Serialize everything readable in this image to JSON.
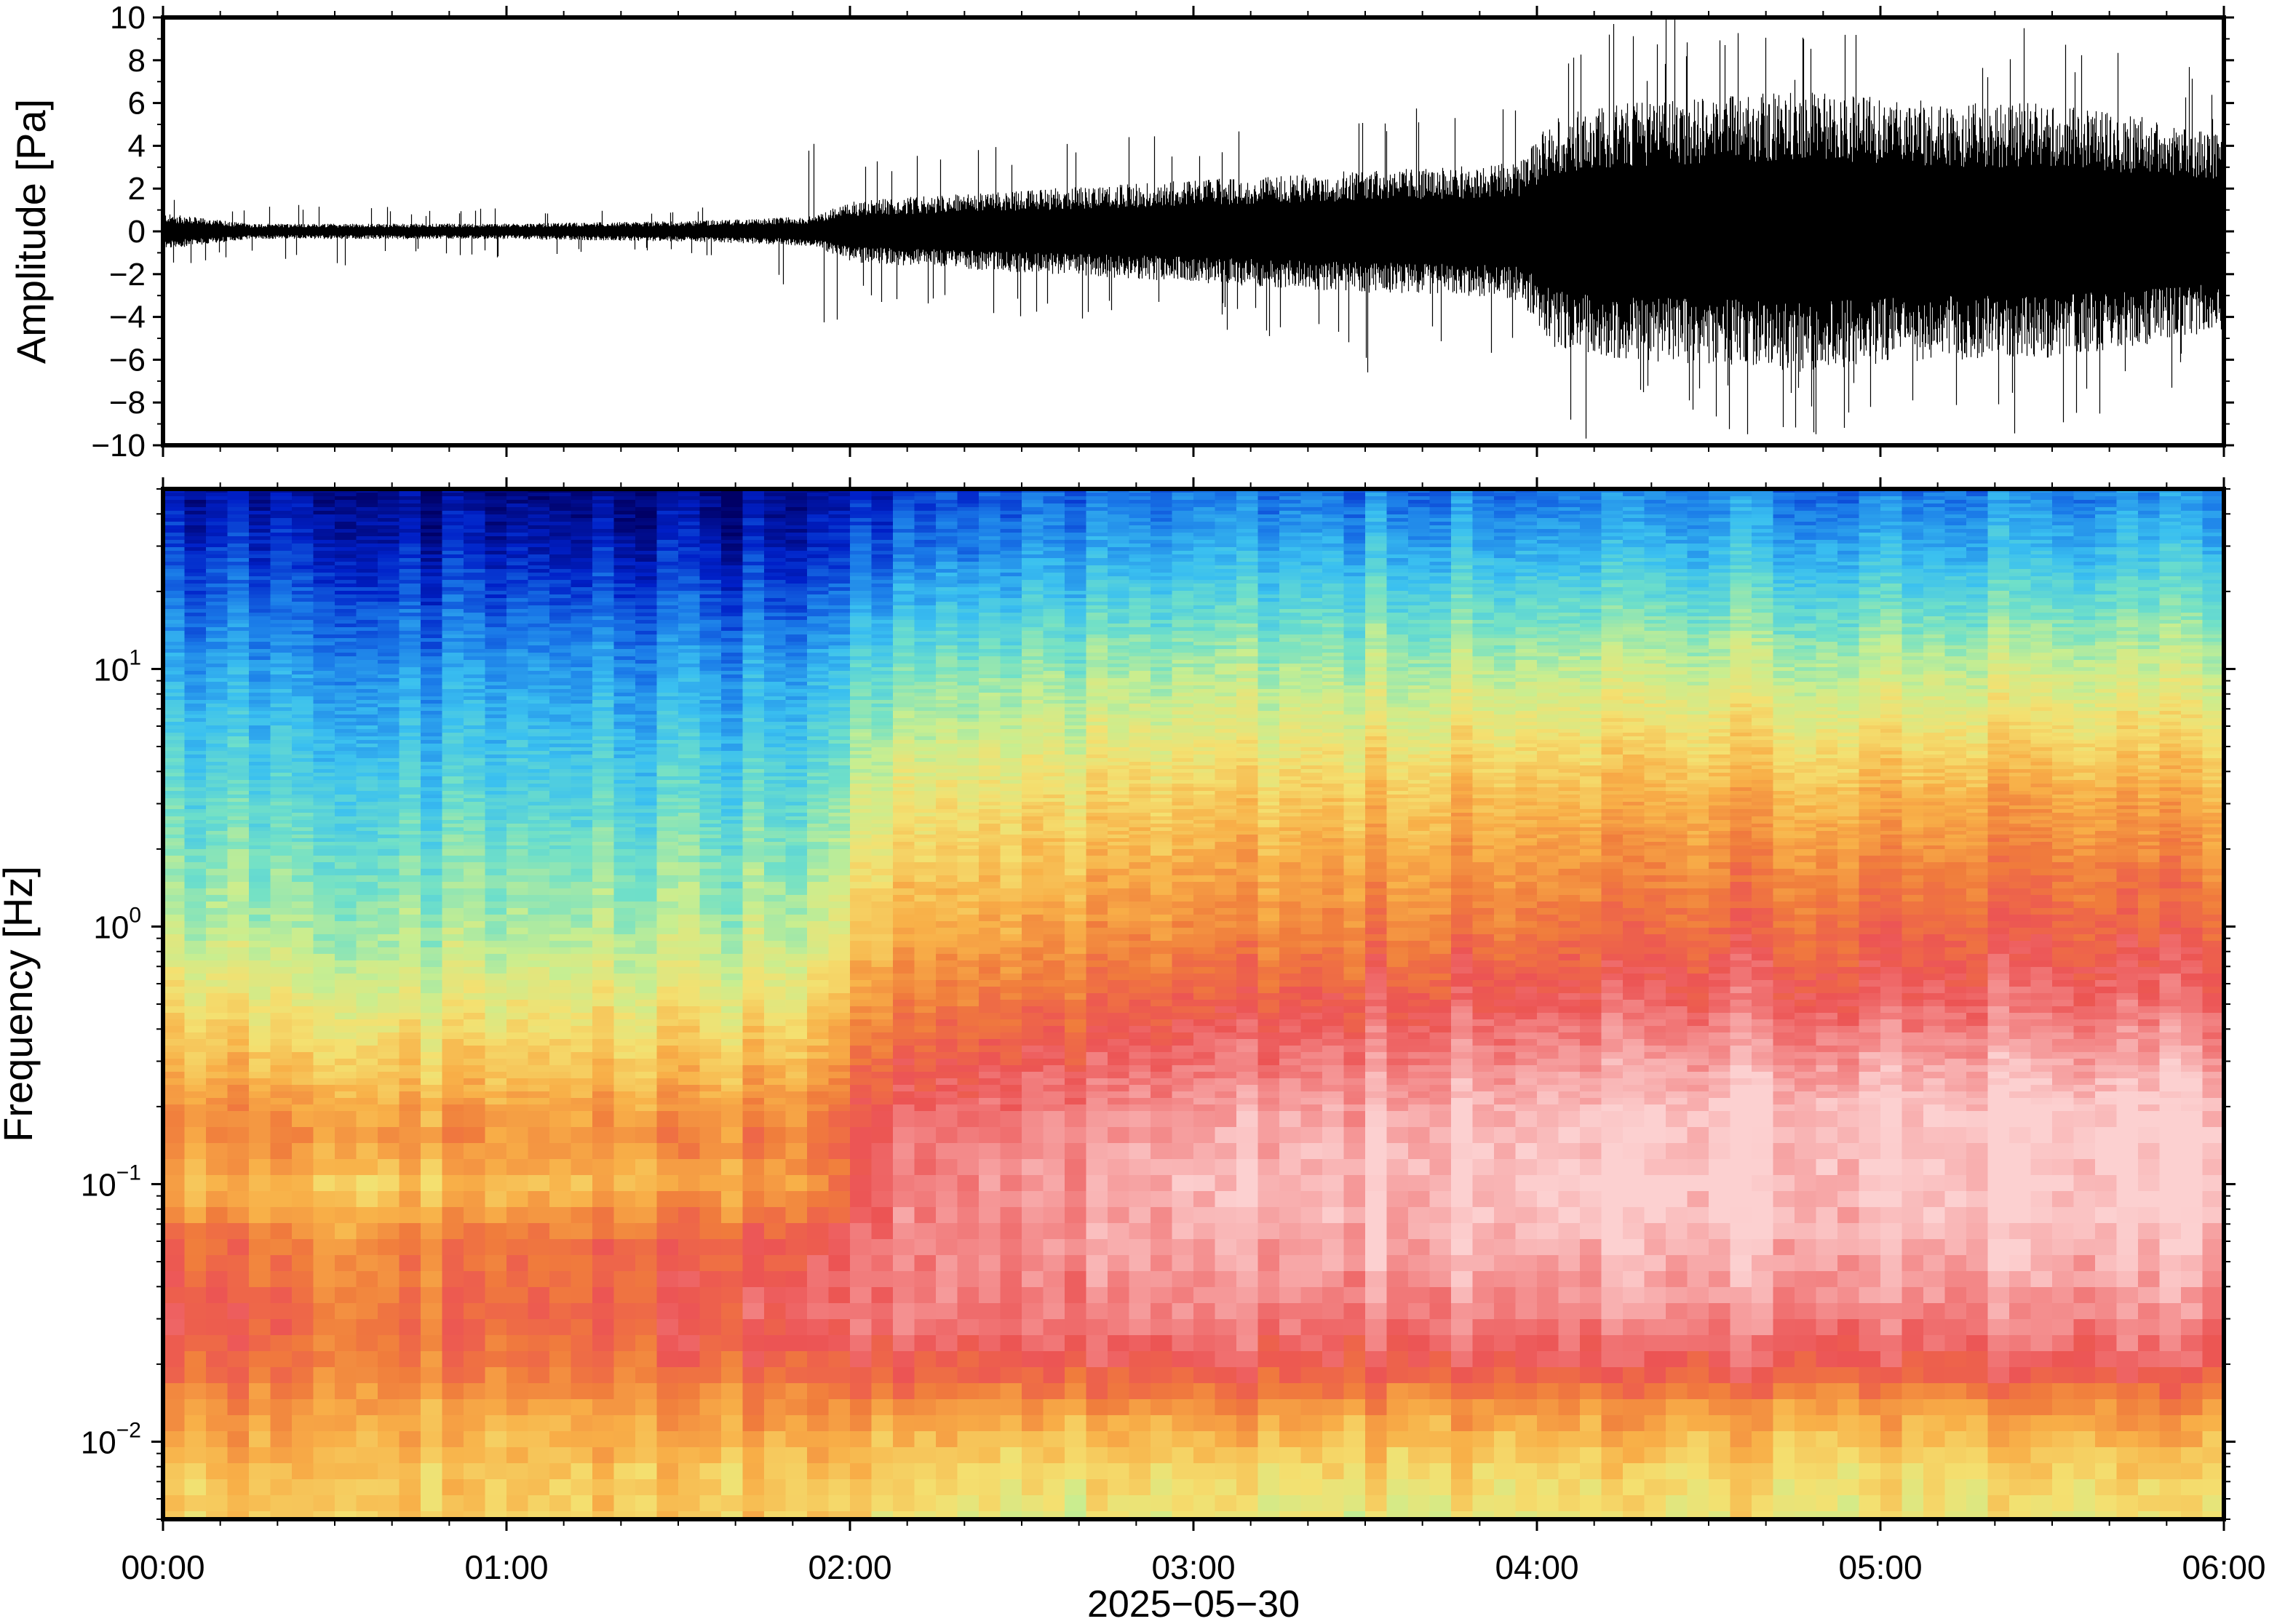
{
  "chart_data": [
    {
      "type": "line",
      "panel": "waveform",
      "ylabel": "Amplitude [Pa]",
      "ylim": [
        -10,
        10
      ],
      "yticks": [
        10,
        8,
        6,
        4,
        2,
        0,
        -2,
        -4,
        -6,
        -8,
        -10
      ],
      "ytick_labels": [
        "10",
        "8",
        "6",
        "4",
        "2",
        "0",
        "−2",
        "−4",
        "−6",
        "−8",
        "−10"
      ],
      "xlim": [
        "00:00",
        "06:00"
      ],
      "grid": false,
      "series": [
        {
          "color": "#000000",
          "x_hours": [
            0.0,
            0.25,
            0.5,
            0.75,
            1.0,
            1.25,
            1.5,
            1.75,
            1.9,
            2.0,
            2.25,
            2.5,
            2.75,
            3.0,
            3.25,
            3.5,
            3.75,
            3.95,
            4.05,
            4.25,
            4.5,
            4.75,
            5.0,
            5.25,
            5.5,
            5.75,
            6.0
          ],
          "envelope_typical": [
            0.7,
            0.3,
            0.3,
            0.3,
            0.3,
            0.35,
            0.4,
            0.5,
            0.6,
            1.2,
            1.4,
            1.6,
            1.8,
            2.0,
            2.2,
            2.4,
            2.5,
            2.7,
            4.5,
            5.0,
            5.2,
            5.5,
            5.2,
            5.0,
            5.0,
            4.5,
            4.0
          ],
          "envelope_peak": [
            2.0,
            1.0,
            1.7,
            1.0,
            1.3,
            1.0,
            1.0,
            1.5,
            5.3,
            3.5,
            4.0,
            4.0,
            4.5,
            4.5,
            5.0,
            7.0,
            5.5,
            6.0,
            10.0,
            10.0,
            10.0,
            10.0,
            9.0,
            10.0,
            10.0,
            9.0,
            7.0
          ]
        }
      ]
    },
    {
      "type": "heatmap",
      "panel": "spectrogram",
      "ylabel": "Frequency [Hz]",
      "xlabel": "2025−05−30",
      "yscale": "log",
      "ylim": [
        0.005,
        50
      ],
      "yticks": [
        {
          "value": 10,
          "base": "10",
          "exp": "1"
        },
        {
          "value": 1,
          "base": "10",
          "exp": "0"
        },
        {
          "value": 0.1,
          "base": "10",
          "exp": "−1"
        },
        {
          "value": 0.01,
          "base": "10",
          "exp": "−2"
        }
      ],
      "xlim": [
        "00:00",
        "06:00"
      ],
      "xtick_labels": [
        "00:00",
        "01:00",
        "02:00",
        "03:00",
        "04:00",
        "05:00",
        "06:00"
      ],
      "colormap": [
        "#000066",
        "#0020c8",
        "#1a7ae8",
        "#3ac0f0",
        "#70e0c8",
        "#c8ee90",
        "#f4e070",
        "#f8b048",
        "#f07c3c",
        "#ec5454",
        "#f49090",
        "#fcd0d0"
      ],
      "frequency_nodes_hz": [
        50,
        30,
        10,
        3,
        1,
        0.5,
        0.3,
        0.2,
        0.15,
        0.1,
        0.06,
        0.03,
        0.02,
        0.013,
        0.008,
        0.005
      ],
      "time_nodes_hours": [
        0.0,
        0.5,
        1.0,
        1.5,
        1.9,
        2.1,
        2.5,
        3.0,
        3.5,
        4.0,
        4.5,
        5.0,
        5.5,
        6.0
      ],
      "level_index_grid": [
        [
          0.8,
          0.3,
          0.3,
          0.2,
          0.3,
          1.1,
          1.7,
          1.9,
          2.0,
          2.0,
          2.1,
          2.1,
          2.1,
          2.1
        ],
        [
          1.4,
          0.8,
          0.9,
          0.8,
          0.8,
          1.7,
          2.3,
          2.6,
          2.8,
          2.8,
          2.9,
          2.9,
          2.9,
          2.9
        ],
        [
          2.8,
          2.2,
          2.6,
          2.4,
          2.6,
          3.9,
          4.4,
          4.6,
          4.8,
          5.0,
          5.1,
          5.1,
          5.1,
          5.0
        ],
        [
          4.0,
          3.4,
          3.7,
          3.6,
          3.8,
          5.7,
          6.1,
          6.4,
          6.7,
          6.9,
          7.1,
          7.2,
          7.3,
          7.0
        ],
        [
          5.0,
          4.4,
          4.8,
          4.7,
          4.9,
          6.8,
          7.2,
          7.6,
          7.9,
          8.2,
          8.4,
          8.6,
          8.6,
          8.4
        ],
        [
          6.2,
          5.4,
          5.8,
          5.7,
          6.0,
          7.8,
          8.2,
          8.6,
          9.0,
          9.2,
          9.4,
          9.5,
          9.5,
          9.3
        ],
        [
          7.0,
          6.3,
          6.6,
          6.5,
          6.8,
          8.6,
          9.0,
          9.4,
          9.8,
          10.1,
          10.3,
          10.4,
          10.4,
          10.2
        ],
        [
          7.6,
          7.0,
          7.3,
          7.2,
          7.6,
          9.0,
          9.6,
          10.0,
          10.4,
          10.7,
          10.9,
          11.0,
          11.0,
          10.8
        ],
        [
          8.0,
          7.4,
          7.6,
          7.6,
          8.0,
          9.3,
          9.9,
          10.3,
          10.7,
          10.9,
          11.0,
          11.0,
          11.0,
          10.9
        ],
        [
          7.2,
          6.2,
          6.8,
          7.0,
          7.4,
          9.6,
          10.1,
          10.5,
          10.8,
          11.0,
          11.0,
          11.0,
          11.0,
          10.9
        ],
        [
          8.6,
          7.4,
          8.2,
          8.4,
          8.8,
          9.7,
          10.0,
          10.3,
          10.5,
          10.6,
          10.7,
          10.7,
          10.7,
          10.6
        ],
        [
          9.2,
          8.0,
          8.6,
          8.8,
          9.2,
          9.6,
          9.6,
          9.7,
          9.8,
          9.9,
          9.9,
          9.9,
          9.9,
          9.8
        ],
        [
          8.6,
          7.8,
          8.2,
          8.4,
          8.6,
          8.8,
          8.8,
          8.9,
          9.0,
          9.0,
          9.0,
          9.0,
          9.1,
          9.0
        ],
        [
          7.6,
          7.2,
          7.3,
          7.3,
          7.4,
          7.4,
          7.2,
          7.3,
          7.3,
          7.4,
          7.4,
          7.4,
          7.4,
          7.3
        ],
        [
          6.8,
          6.6,
          6.6,
          6.6,
          6.6,
          6.4,
          6.2,
          6.2,
          6.3,
          6.3,
          6.3,
          6.4,
          6.4,
          6.3
        ],
        [
          6.5,
          6.4,
          6.4,
          6.4,
          6.4,
          6.0,
          5.5,
          5.6,
          5.7,
          5.8,
          5.8,
          5.9,
          5.9,
          5.8
        ]
      ]
    }
  ]
}
